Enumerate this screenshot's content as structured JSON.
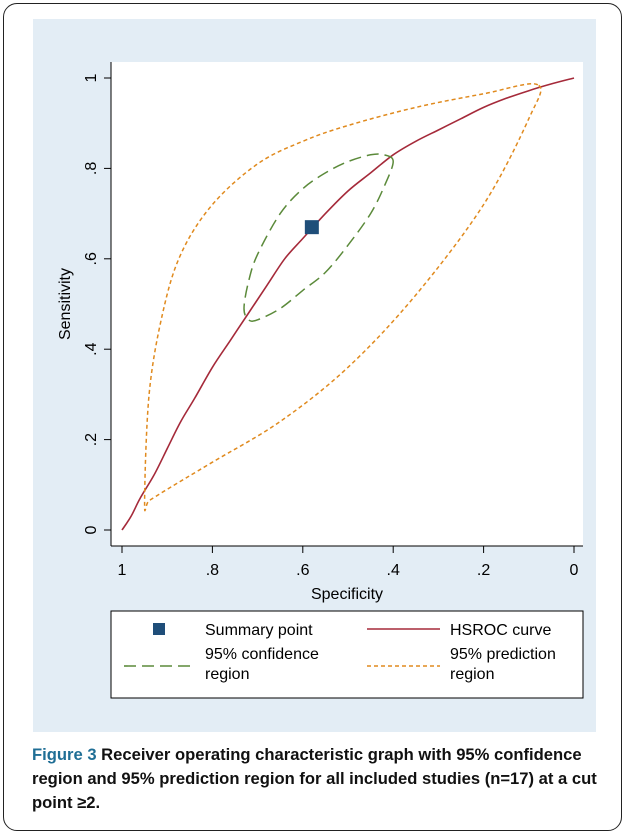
{
  "chart_data": {
    "type": "line",
    "xlabel": "Specificity",
    "ylabel": "Sensitivity",
    "xlim": [
      1,
      0
    ],
    "ylim": [
      0,
      1
    ],
    "xticks": [
      1,
      0.8,
      0.6,
      0.4,
      0.2,
      0
    ],
    "xtick_labels": [
      "1",
      ".8",
      ".6",
      ".4",
      ".2",
      "0"
    ],
    "yticks": [
      0,
      0.2,
      0.4,
      0.6,
      0.8,
      1
    ],
    "ytick_labels": [
      "0",
      ".2",
      ".4",
      ".6",
      ".8",
      "1"
    ],
    "grid": false,
    "legend_position": "bottom",
    "summary_point": {
      "name": "Summary point",
      "specificity": 0.58,
      "sensitivity": 0.67,
      "color": "#1f4e79"
    },
    "series": [
      {
        "name": "HSROC curve",
        "color": "#a52a3a",
        "style": "solid",
        "x": [
          1,
          0.98,
          0.96,
          0.93,
          0.9,
          0.87,
          0.84,
          0.8,
          0.76,
          0.72,
          0.68,
          0.64,
          0.6,
          0.55,
          0.5,
          0.45,
          0.4,
          0.35,
          0.3,
          0.25,
          0.2,
          0.15,
          0.1,
          0.05,
          0
        ],
        "y": [
          0,
          0.03,
          0.07,
          0.12,
          0.18,
          0.24,
          0.29,
          0.36,
          0.42,
          0.48,
          0.54,
          0.6,
          0.645,
          0.7,
          0.75,
          0.79,
          0.83,
          0.86,
          0.885,
          0.91,
          0.935,
          0.955,
          0.972,
          0.987,
          1
        ]
      },
      {
        "name": "95% confidence region",
        "legend_lines": [
          "95% confidence",
          "region"
        ],
        "color": "#5b8a3a",
        "style": "dashed",
        "x": [
          0.4,
          0.42,
          0.45,
          0.5,
          0.55,
          0.6,
          0.65,
          0.7,
          0.72,
          0.73,
          0.72,
          0.7,
          0.65,
          0.6,
          0.55,
          0.5,
          0.45,
          0.42,
          0.4
        ],
        "y": [
          0.815,
          0.83,
          0.83,
          0.815,
          0.79,
          0.755,
          0.7,
          0.61,
          0.55,
          0.49,
          0.465,
          0.465,
          0.49,
          0.53,
          0.57,
          0.63,
          0.7,
          0.76,
          0.815
        ]
      },
      {
        "name": "95% prediction region",
        "legend_lines": [
          "95% prediction",
          "region"
        ],
        "color": "#e08a1e",
        "style": "dotted",
        "x": [
          0.08,
          0.2,
          0.35,
          0.5,
          0.6,
          0.7,
          0.8,
          0.87,
          0.91,
          0.94,
          0.95,
          0.94,
          0.9,
          0.8,
          0.65,
          0.5,
          0.35,
          0.2,
          0.1,
          0.08
        ],
        "y": [
          0.985,
          0.965,
          0.935,
          0.895,
          0.86,
          0.81,
          0.72,
          0.61,
          0.48,
          0.3,
          0.06,
          0.065,
          0.09,
          0.15,
          0.24,
          0.36,
          0.52,
          0.72,
          0.91,
          0.985
        ]
      }
    ]
  },
  "caption": {
    "label": "Figure 3",
    "text": " Receiver operating characteristic graph with 95% confidence region and 95% prediction region for all included studies (n=17) at a cut point ≥2."
  }
}
